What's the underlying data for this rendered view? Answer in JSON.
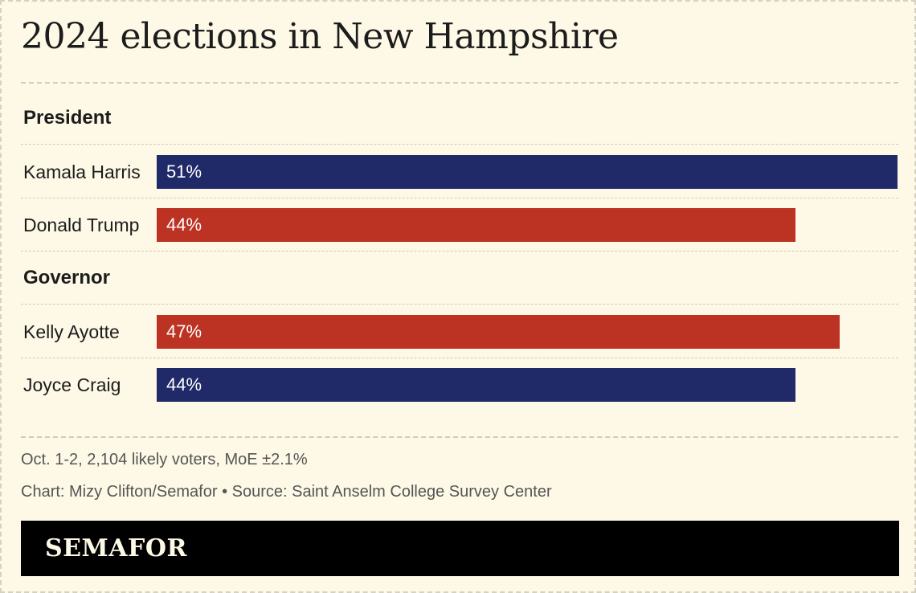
{
  "header": {
    "title": "2024 elections in New Hampshire"
  },
  "chart_data": {
    "type": "bar",
    "orientation": "horizontal",
    "title": "2024 elections in New Hampshire",
    "unit": "%",
    "xlim": [
      0,
      51
    ],
    "groups": [
      {
        "name": "President",
        "bars": [
          {
            "label": "Kamala Harris",
            "value": 51,
            "display": "51%",
            "color": "#212a69"
          },
          {
            "label": "Donald Trump",
            "value": 44,
            "display": "44%",
            "color": "#bd3323"
          }
        ]
      },
      {
        "name": "Governor",
        "bars": [
          {
            "label": "Kelly Ayotte",
            "value": 47,
            "display": "47%",
            "color": "#bd3323"
          },
          {
            "label": "Joyce Craig",
            "value": 44,
            "display": "44%",
            "color": "#212a69"
          }
        ]
      }
    ]
  },
  "footer": {
    "note": "Oct. 1-2, 2,104 likely voters, MoE ±2.1%",
    "credit": "Chart: Mizy Clifton/Semafor • Source: Saint Anselm College Survey Center",
    "brand": "SEMAFOR"
  }
}
